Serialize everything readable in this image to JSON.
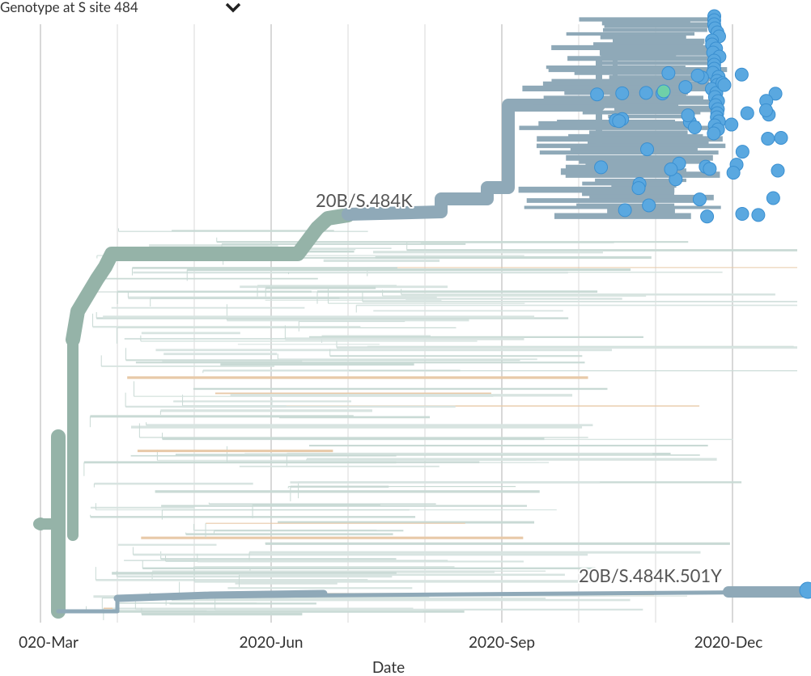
{
  "header": {
    "color_by": "Genotype at S site 484"
  },
  "annotations": [
    "20B/S.484K",
    "20B/S.484K.501Y"
  ],
  "axis": {
    "ticks": [
      "020-Mar",
      "2020-Jun",
      "2020-Sep",
      "2020-Dec"
    ],
    "label": "Date"
  }
}
